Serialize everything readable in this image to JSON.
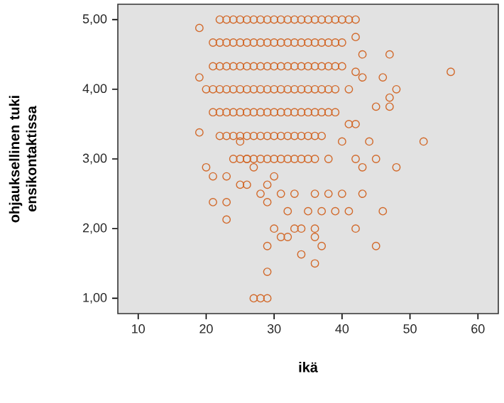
{
  "chart_data": {
    "type": "scatter",
    "xlabel": "ikä",
    "ylabel": "ohjauksellinen tuki ensikontaktissa",
    "xlim": [
      7,
      63
    ],
    "ylim": [
      0.78,
      5.22
    ],
    "xticks": [
      10,
      20,
      30,
      40,
      50,
      60
    ],
    "yticks": [
      {
        "value": 1,
        "label": "1,00"
      },
      {
        "value": 2,
        "label": "2,00"
      },
      {
        "value": 3,
        "label": "3,00"
      },
      {
        "value": 4,
        "label": "4,00"
      },
      {
        "value": 5,
        "label": "5,00"
      }
    ],
    "marker": "circle",
    "series": [
      {
        "color": "#d2692a",
        "x": [
          22,
          23,
          24,
          25,
          26,
          27,
          28,
          29,
          30,
          31,
          32,
          33,
          34,
          35,
          36,
          37,
          38,
          39,
          40,
          41,
          42,
          21,
          22,
          23,
          24,
          25,
          26,
          27,
          28,
          29,
          30,
          31,
          32,
          33,
          34,
          35,
          36,
          37,
          38,
          39,
          40,
          21,
          22,
          23,
          24,
          25,
          26,
          27,
          28,
          29,
          30,
          31,
          32,
          33,
          34,
          35,
          36,
          37,
          38,
          39,
          40,
          20,
          21,
          22,
          23,
          24,
          25,
          26,
          27,
          28,
          29,
          30,
          31,
          32,
          33,
          34,
          35,
          36,
          37,
          38,
          39,
          21,
          22,
          23,
          24,
          25,
          26,
          27,
          28,
          29,
          30,
          31,
          32,
          33,
          34,
          35,
          36,
          37,
          38,
          39,
          22,
          23,
          24,
          25,
          26,
          27,
          28,
          29,
          30,
          31,
          32,
          33,
          34,
          35,
          36,
          37,
          24,
          25,
          26,
          27,
          28,
          29,
          30,
          31,
          32,
          33,
          34,
          35,
          36,
          19,
          19,
          19,
          56,
          52,
          47,
          46,
          48,
          47,
          47,
          45,
          43,
          42,
          43,
          45,
          48,
          43,
          42,
          43,
          40,
          38,
          36,
          46,
          41,
          39,
          37,
          35,
          42,
          45,
          37,
          34,
          36,
          36,
          36,
          33,
          34,
          20,
          21,
          23,
          21,
          23,
          23,
          25,
          26,
          29,
          29,
          27,
          28,
          29,
          30,
          31,
          32,
          28,
          29,
          30,
          31,
          32,
          33,
          29,
          27,
          26,
          25,
          38,
          40,
          41,
          42,
          44,
          41,
          42
        ],
        "values": [
          5,
          5,
          5,
          5,
          5,
          5,
          5,
          5,
          5,
          5,
          5,
          5,
          5,
          5,
          5,
          5,
          5,
          5,
          5,
          5,
          5,
          4.67,
          4.67,
          4.67,
          4.67,
          4.67,
          4.67,
          4.67,
          4.67,
          4.67,
          4.67,
          4.67,
          4.67,
          4.67,
          4.67,
          4.67,
          4.67,
          4.67,
          4.67,
          4.67,
          4.67,
          4.33,
          4.33,
          4.33,
          4.33,
          4.33,
          4.33,
          4.33,
          4.33,
          4.33,
          4.33,
          4.33,
          4.33,
          4.33,
          4.33,
          4.33,
          4.33,
          4.33,
          4.33,
          4.33,
          4.33,
          4,
          4,
          4,
          4,
          4,
          4,
          4,
          4,
          4,
          4,
          4,
          4,
          4,
          4,
          4,
          4,
          4,
          4,
          4,
          4,
          3.67,
          3.67,
          3.67,
          3.67,
          3.67,
          3.67,
          3.67,
          3.67,
          3.67,
          3.67,
          3.67,
          3.67,
          3.67,
          3.67,
          3.67,
          3.67,
          3.67,
          3.67,
          3.67,
          3.33,
          3.33,
          3.33,
          3.33,
          3.33,
          3.33,
          3.33,
          3.33,
          3.33,
          3.33,
          3.33,
          3.33,
          3.33,
          3.33,
          3.33,
          3.33,
          3,
          3,
          3,
          3,
          3,
          3,
          3,
          3,
          3,
          3,
          3,
          3,
          3,
          4.88,
          4.17,
          3.38,
          4.25,
          3.25,
          4.5,
          4.17,
          4,
          3.88,
          3.75,
          3.75,
          4.5,
          4.75,
          4.17,
          3,
          2.88,
          2.88,
          3,
          2.5,
          2.5,
          2.5,
          2.5,
          2.25,
          2.25,
          2.25,
          2.25,
          2.25,
          2,
          1.75,
          1.75,
          1.63,
          1.5,
          2,
          1.88,
          2,
          2,
          2.88,
          2.75,
          2.75,
          2.38,
          2.38,
          2.13,
          2.63,
          2.63,
          1.75,
          1.38,
          1,
          1,
          1,
          2,
          1.88,
          1.88,
          2.5,
          2.63,
          2.75,
          2.5,
          2.25,
          2.5,
          2.38,
          2.88,
          3,
          3.25,
          3,
          3.25,
          3.5,
          3.5,
          3.25,
          4,
          4.25
        ]
      }
    ]
  }
}
